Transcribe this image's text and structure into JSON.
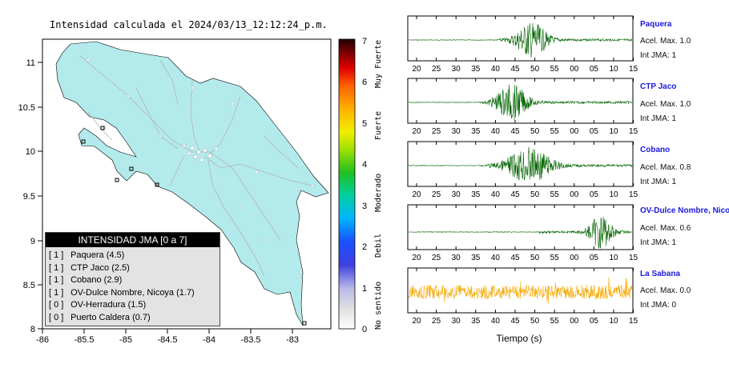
{
  "map": {
    "title": "Intensidad calculada el 2024/03/13_12:12:24_p.m.",
    "lon_ticks": [
      "-86",
      "-85.5",
      "-85",
      "-84.5",
      "-84",
      "-83.5",
      "-83"
    ],
    "lat_ticks": [
      "11",
      "10.5",
      "10",
      "9.5",
      "9",
      "8.5",
      "8"
    ],
    "land_color": "#b3eaec",
    "border_color": "#000000",
    "road_color": "#b4b4b4"
  },
  "colorbar": {
    "ticks": [
      "0",
      "1",
      "2",
      "3",
      "4",
      "5",
      "6",
      "7"
    ],
    "labels": [
      "No sentido",
      "Debil",
      "Moderado",
      "Fuerte",
      "Muy Fuerte"
    ]
  },
  "legend": {
    "title": "INTENSIDAD JMA [0 a 7]",
    "rows": [
      {
        "level": "[ 1 ]",
        "text": "Paquera (4.5)"
      },
      {
        "level": "[ 1 ]",
        "text": "CTP Jaco (2.5)"
      },
      {
        "level": "[ 1 ]",
        "text": "Cobano (2.9)"
      },
      {
        "level": "[ 1 ]",
        "text": "OV-Dulce Nombre, Nicoya (1.7)"
      },
      {
        "level": "[ 0 ]",
        "text": "OV-Herradura (1.5)"
      },
      {
        "level": "[ 0 ]",
        "text": "Puerto Caldera (0.7)"
      }
    ]
  },
  "waveforms": {
    "time_ticks": [
      "20",
      "25",
      "30",
      "35",
      "40",
      "45",
      "50",
      "55",
      "00",
      "05",
      "10",
      "15"
    ],
    "xlabel": "Tiempo (s)",
    "stations": [
      {
        "name": "Paquera",
        "accel": "Acel. Max. 1.0",
        "jma": "Int JMA: 1",
        "color": "#006400"
      },
      {
        "name": "CTP Jaco",
        "accel": "Acel. Max. 1.0",
        "jma": "Int JMA: 1",
        "color": "#006400"
      },
      {
        "name": "Cobano",
        "accel": "Acel. Max. 0.8",
        "jma": "Int JMA: 1",
        "color": "#006400"
      },
      {
        "name": "OV-Dulce Nombre, Nicoya",
        "accel": "Acel. Max. 0.6",
        "jma": "Int JMA: 1",
        "color": "#006400"
      },
      {
        "name": "La Sabana",
        "accel": "Acel. Max. 0.0",
        "jma": "Int JMA: 0",
        "color": "#f5a800"
      }
    ]
  }
}
